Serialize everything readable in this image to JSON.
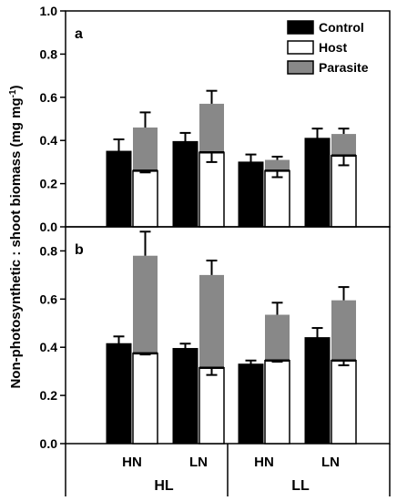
{
  "chart_data": {
    "type": "bar",
    "ylabel": "Non-photosynthetic : shoot biomass (mg mg",
    "ylabel_sup": "-1",
    "ylabel_close": ")",
    "legend": {
      "placement": "top-right",
      "entries": [
        {
          "name": "Control",
          "color": "#000000"
        },
        {
          "name": "Host",
          "color": "#ffffff"
        },
        {
          "name": "Parasite",
          "color": "#888888"
        }
      ]
    },
    "x_tick_labels": [
      "HN",
      "LN",
      "HN",
      "LN"
    ],
    "x_group_labels": [
      "HL",
      "LL"
    ],
    "panels": [
      {
        "label": "a",
        "ylim": [
          0,
          1.0
        ],
        "yticks": [
          "0.0",
          "0.2",
          "0.4",
          "0.6",
          "0.8",
          "1.0"
        ],
        "bars": [
          {
            "control": 0.35,
            "control_err": 0.055,
            "host": 0.26,
            "host_err": 0.008,
            "total": 0.46,
            "total_err": 0.07
          },
          {
            "control": 0.395,
            "control_err": 0.04,
            "host": 0.345,
            "host_err": 0.045,
            "total": 0.57,
            "total_err": 0.06
          },
          {
            "control": 0.3,
            "control_err": 0.035,
            "host": 0.26,
            "host_err": 0.03,
            "total": 0.31,
            "total_err": 0.015
          },
          {
            "control": 0.41,
            "control_err": 0.045,
            "host": 0.33,
            "host_err": 0.045,
            "total": 0.43,
            "total_err": 0.025
          }
        ]
      },
      {
        "label": "b",
        "ylim": [
          0,
          0.9
        ],
        "yticks": [
          "0.0",
          "0.2",
          "0.4",
          "0.6",
          "0.8"
        ],
        "bars": [
          {
            "control": 0.415,
            "control_err": 0.03,
            "host": 0.375,
            "host_err": 0.005,
            "total": 0.78,
            "total_err": 0.1
          },
          {
            "control": 0.395,
            "control_err": 0.02,
            "host": 0.315,
            "host_err": 0.03,
            "total": 0.7,
            "total_err": 0.06
          },
          {
            "control": 0.33,
            "control_err": 0.015,
            "host": 0.345,
            "host_err": 0.005,
            "total": 0.535,
            "total_err": 0.05
          },
          {
            "control": 0.44,
            "control_err": 0.04,
            "host": 0.345,
            "host_err": 0.02,
            "total": 0.595,
            "total_err": 0.055
          }
        ]
      }
    ]
  }
}
